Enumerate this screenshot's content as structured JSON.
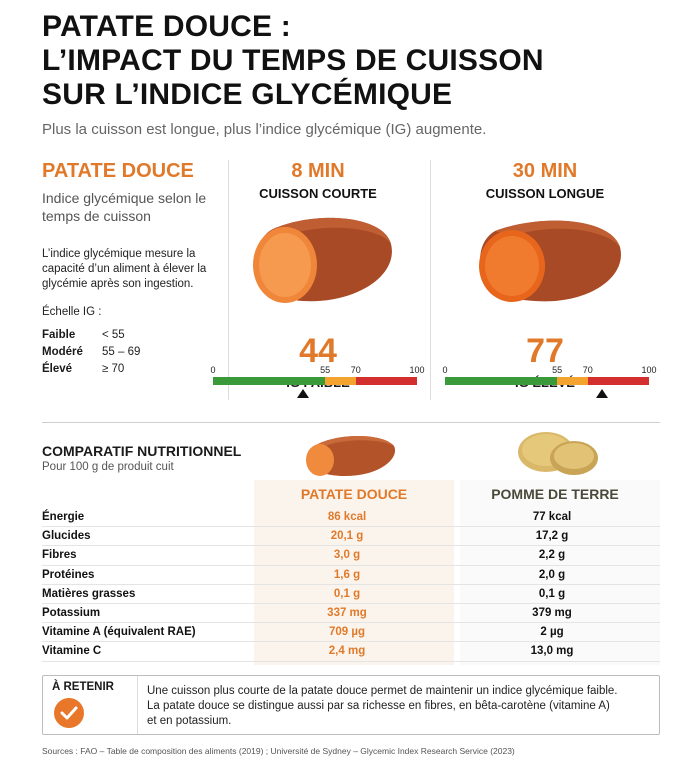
{
  "title_lines": [
    "PATATE DOUCE :",
    "L’IMPACT DU TEMPS DE CUISSON",
    "SUR L’INDICE GLYCÉMIQUE"
  ],
  "subtitle": "Plus la cuisson est longue, plus l’indice glycémique (IG) augmente.",
  "left": {
    "heading": "PATATE DOUCE",
    "subheading": "Indice glycémique selon le temps de cuisson",
    "description": "L’indice glycémique mesure la capacité d’un aliment à élever la glycémie après son ingestion.",
    "scale_title": "Échelle IG :",
    "scale": [
      {
        "label": "Faible",
        "value": "< 55"
      },
      {
        "label": "Modéré",
        "value": "55 – 69"
      },
      {
        "label": "Élevé",
        "value": "≥ 70"
      }
    ]
  },
  "short": {
    "time": "8 MIN",
    "kind": "CUISSON COURTE",
    "ig": "44",
    "ig_label": "IG FAIBLE",
    "ig_value": 44
  },
  "long": {
    "time": "30 MIN",
    "kind": "CUISSON LONGUE",
    "ig": "77",
    "ig_label": "IG ÉLEVÉ",
    "ig_value": 77
  },
  "gauge": {
    "ticks": [
      "0",
      "55",
      "70",
      "100"
    ],
    "tick_values": [
      0,
      55,
      70,
      100
    ],
    "colors": {
      "low": "#3a9a3a",
      "mid": "#f4a32f",
      "high": "#d32f2f"
    }
  },
  "comparison": {
    "title": "COMPARATIF NUTRITIONNEL",
    "subtitle": "Pour 100 g de produit cuit",
    "col1": "PATATE DOUCE",
    "col2": "POMME DE TERRE",
    "rows": [
      {
        "name": "Énergie",
        "v1": "86 kcal",
        "v2": "77 kcal"
      },
      {
        "name": "Glucides",
        "v1": "20,1 g",
        "v2": "17,2 g"
      },
      {
        "name": "Fibres",
        "v1": "3,0 g",
        "v2": "2,2 g"
      },
      {
        "name": "Protéines",
        "v1": "1,6 g",
        "v2": "2,0 g"
      },
      {
        "name": "Matières grasses",
        "v1": "0,1 g",
        "v2": "0,1 g"
      },
      {
        "name": "Potassium",
        "v1": "337 mg",
        "v2": "379 mg"
      },
      {
        "name": "Vitamine A (équivalent RAE)",
        "v1": "709 µg",
        "v2": "2 µg"
      },
      {
        "name": "Vitamine C",
        "v1": "2,4 mg",
        "v2": "13,0 mg"
      }
    ]
  },
  "retain": {
    "title": "À RETENIR",
    "icon": "check-icon",
    "text_lines": [
      "Une cuisson plus courte de la patate douce permet de maintenir un indice glycémique faible.",
      "La patate douce se distingue aussi par sa richesse en fibres, en bêta-carotène (vitamine A)",
      "et en potassium."
    ]
  },
  "sources": "Sources : FAO – Table de composition des aliments (2019) ; Université de Sydney – Glycemic Index Research Service (2023)",
  "accent": "#e07a2a"
}
